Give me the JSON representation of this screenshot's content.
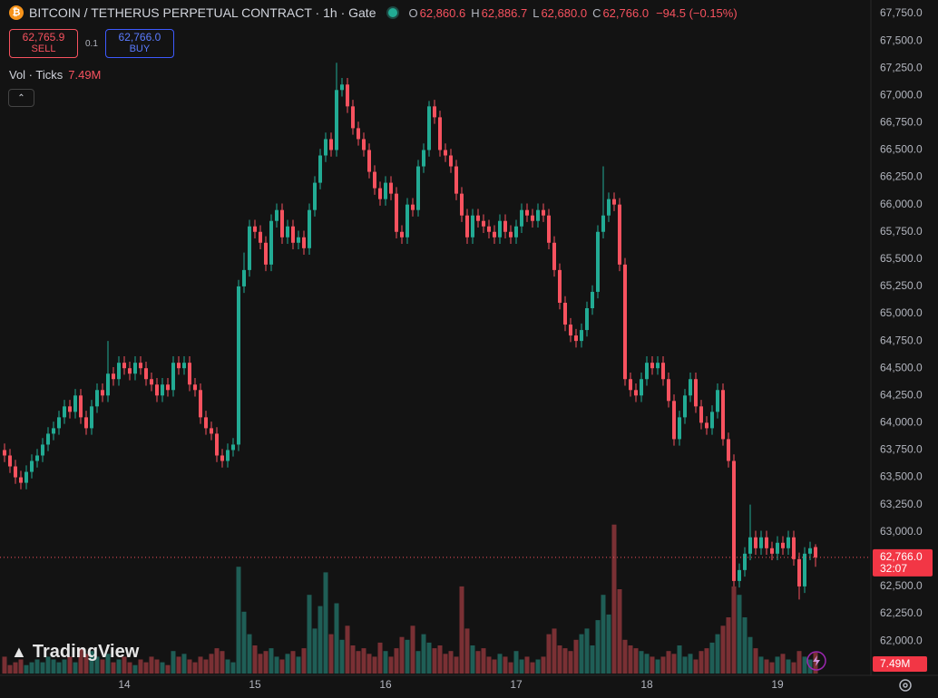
{
  "header": {
    "title": "BITCOIN / TETHERUS PERPETUAL CONTRACT · 1h · Gate",
    "coin_icon": "₿",
    "o_key": "O",
    "o_value": "62,860.6",
    "h_key": "H",
    "h_value": "62,886.7",
    "l_key": "L",
    "l_value": "62,680.0",
    "c_key": "C",
    "c_value": "62,766.0",
    "change": "−94.5 (−0.15%)",
    "sell_price": "62,765.9",
    "sell_label": "SELL",
    "quantity": "0.1",
    "buy_price": "62,766.0",
    "buy_label": "BUY",
    "volume_label": "Vol · Ticks",
    "volume_value": "7.49M",
    "logo": "TradingView"
  },
  "chart_data": {
    "type": "candlestick",
    "title": "BITCOIN / TETHERUS PERPETUAL CONTRACT · 1h · Gate",
    "up_color": "#22ab94",
    "down_color": "#f7525f",
    "volume_up_color": "#1f5e56",
    "volume_down_color": "#7a3034",
    "categories": [
      null,
      null,
      null,
      null,
      null,
      null,
      null,
      null,
      null,
      null,
      null,
      null,
      null,
      null,
      null,
      null,
      null,
      null,
      null,
      null,
      null,
      null,
      "14",
      null,
      null,
      null,
      null,
      null,
      null,
      null,
      null,
      null,
      null,
      null,
      null,
      null,
      null,
      null,
      null,
      null,
      null,
      null,
      null,
      null,
      null,
      null,
      "15",
      null,
      null,
      null,
      null,
      null,
      null,
      null,
      null,
      null,
      null,
      null,
      null,
      null,
      null,
      null,
      null,
      null,
      null,
      null,
      null,
      null,
      null,
      null,
      "16",
      null,
      null,
      null,
      null,
      null,
      null,
      null,
      null,
      null,
      null,
      null,
      null,
      null,
      null,
      null,
      null,
      null,
      null,
      null,
      null,
      null,
      null,
      null,
      "17",
      null,
      null,
      null,
      null,
      null,
      null,
      null,
      null,
      null,
      null,
      null,
      null,
      null,
      null,
      null,
      null,
      null,
      null,
      null,
      null,
      null,
      null,
      null,
      "18",
      null,
      null,
      null,
      null,
      null,
      null,
      null,
      null,
      null,
      null,
      null,
      null,
      null,
      null,
      null,
      null,
      null,
      null,
      null,
      null,
      null,
      null,
      null,
      "19",
      null,
      null,
      null,
      null,
      null,
      null,
      null
    ],
    "open": [
      63750,
      63700,
      63600,
      63500,
      63450,
      63550,
      63650,
      63700,
      63800,
      63900,
      63950,
      64050,
      64150,
      64100,
      64250,
      64050,
      63950,
      64150,
      64300,
      64250,
      64450,
      64400,
      64550,
      64500,
      64450,
      64550,
      64500,
      64400,
      64350,
      64250,
      64350,
      64300,
      64550,
      64500,
      64550,
      64350,
      64300,
      64050,
      63950,
      63900,
      63700,
      63650,
      63750,
      63800,
      65250,
      65400,
      65800,
      65750,
      65650,
      65450,
      65850,
      65950,
      65700,
      65800,
      65650,
      65700,
      65600,
      65950,
      66200,
      66450,
      66600,
      66500,
      67050,
      67100,
      66900,
      66700,
      66600,
      66500,
      66300,
      66150,
      66050,
      66200,
      66100,
      65750,
      65700,
      66000,
      65950,
      66350,
      66500,
      66900,
      66800,
      66500,
      66450,
      66350,
      66100,
      65900,
      65700,
      65900,
      65850,
      65800,
      65750,
      65700,
      65850,
      65750,
      65700,
      65800,
      65950,
      65900,
      65850,
      65950,
      65900,
      65650,
      65400,
      65100,
      64900,
      64800,
      64750,
      64850,
      65050,
      65200,
      65750,
      65900,
      66050,
      66000,
      65450,
      64400,
      64300,
      64250,
      64400,
      64550,
      64500,
      64550,
      64400,
      64200,
      63850,
      64050,
      64250,
      64400,
      64150,
      64000,
      63950,
      64100,
      64300,
      63850,
      63650,
      62550,
      62650,
      62800,
      62950,
      62850,
      62950,
      62850,
      62800,
      62900,
      62850,
      62950,
      62750,
      62500,
      62800,
      62860.6
    ],
    "high": [
      63810,
      63760,
      63660,
      63560,
      63610,
      63710,
      63760,
      63860,
      63960,
      64010,
      64110,
      64210,
      64210,
      64310,
      64310,
      64110,
      64210,
      64360,
      64360,
      64750,
      64510,
      64610,
      64610,
      64560,
      64610,
      64610,
      64560,
      64460,
      64410,
      64410,
      64410,
      64610,
      64610,
      64610,
      64610,
      64410,
      64360,
      64110,
      64010,
      63960,
      63760,
      63810,
      63860,
      65310,
      65560,
      65860,
      65860,
      65810,
      65710,
      65910,
      66010,
      66010,
      65860,
      65860,
      65760,
      65760,
      66010,
      66260,
      66510,
      66660,
      66660,
      67300,
      67160,
      67160,
      66960,
      66760,
      66660,
      66560,
      66360,
      66210,
      66260,
      66260,
      66160,
      65810,
      66060,
      66060,
      66410,
      66560,
      66950,
      66960,
      66860,
      66560,
      66510,
      66410,
      66160,
      65960,
      65960,
      65960,
      65910,
      65860,
      65810,
      65910,
      65910,
      65810,
      65860,
      66010,
      66010,
      65960,
      66010,
      66010,
      65960,
      65710,
      65460,
      65160,
      64960,
      64860,
      64910,
      65110,
      65260,
      65810,
      66350,
      66110,
      66110,
      66060,
      65510,
      64460,
      64360,
      64460,
      64610,
      64610,
      64610,
      64610,
      64460,
      64260,
      64110,
      64310,
      64460,
      64460,
      64210,
      64060,
      64160,
      64360,
      64360,
      63910,
      63710,
      62710,
      62860,
      63250,
      63010,
      63010,
      63010,
      62910,
      62960,
      62960,
      63010,
      63010,
      62810,
      62860,
      62910,
      62886.7
    ],
    "low": [
      63640,
      63540,
      63440,
      63390,
      63390,
      63490,
      63590,
      63640,
      63740,
      63840,
      63890,
      63990,
      64040,
      64040,
      63990,
      63890,
      63890,
      64090,
      64190,
      64190,
      64340,
      64340,
      64440,
      64390,
      64390,
      64440,
      64340,
      64290,
      64190,
      64190,
      64240,
      64240,
      64440,
      64440,
      64290,
      64240,
      63990,
      63890,
      63840,
      63640,
      63590,
      63590,
      63690,
      63740,
      65190,
      65340,
      65690,
      65590,
      65390,
      65390,
      65790,
      65640,
      65640,
      65590,
      65590,
      65540,
      65540,
      65890,
      66140,
      66390,
      66440,
      66440,
      66990,
      66840,
      66640,
      66540,
      66440,
      66240,
      66090,
      65990,
      65990,
      66040,
      65690,
      65640,
      65640,
      65890,
      65890,
      66290,
      66440,
      66740,
      66440,
      66390,
      66290,
      66040,
      65840,
      65640,
      65640,
      65790,
      65740,
      65690,
      65640,
      65640,
      65690,
      65640,
      65640,
      65740,
      65840,
      65790,
      65790,
      65840,
      65590,
      65340,
      65040,
      64840,
      64740,
      64690,
      64690,
      64790,
      64990,
      65140,
      65690,
      65840,
      65940,
      65390,
      64340,
      64240,
      64190,
      64190,
      64340,
      64440,
      64440,
      64340,
      64140,
      63790,
      63790,
      63990,
      64190,
      64090,
      63940,
      63890,
      63890,
      64040,
      63790,
      63590,
      62500,
      62490,
      62590,
      62740,
      62790,
      62790,
      62790,
      62740,
      62740,
      62790,
      62790,
      62690,
      62380,
      62440,
      62740,
      62680.0
    ],
    "close": [
      63700,
      63600,
      63500,
      63450,
      63550,
      63650,
      63700,
      63800,
      63900,
      63950,
      64050,
      64150,
      64100,
      64250,
      64050,
      63950,
      64150,
      64300,
      64250,
      64450,
      64400,
      64550,
      64500,
      64450,
      64550,
      64500,
      64400,
      64350,
      64250,
      64350,
      64300,
      64550,
      64500,
      64550,
      64350,
      64300,
      64050,
      63950,
      63900,
      63700,
      63650,
      63750,
      63800,
      65250,
      65400,
      65800,
      65750,
      65650,
      65450,
      65850,
      65950,
      65700,
      65800,
      65650,
      65700,
      65600,
      65950,
      66200,
      66450,
      66600,
      66500,
      67050,
      67100,
      66900,
      66700,
      66600,
      66500,
      66300,
      66150,
      66050,
      66200,
      66100,
      65750,
      65700,
      66000,
      65950,
      66350,
      66500,
      66900,
      66800,
      66500,
      66450,
      66350,
      66100,
      65900,
      65700,
      65900,
      65850,
      65800,
      65750,
      65700,
      65850,
      65750,
      65700,
      65800,
      65950,
      65900,
      65850,
      65950,
      65900,
      65650,
      65400,
      65100,
      64900,
      64800,
      64750,
      64850,
      65050,
      65200,
      65750,
      65900,
      66050,
      66000,
      65450,
      64400,
      64300,
      64250,
      64400,
      64550,
      64500,
      64550,
      64400,
      64200,
      63850,
      64050,
      64250,
      64400,
      64150,
      64000,
      63950,
      64100,
      64300,
      63850,
      63650,
      62550,
      62650,
      62800,
      62950,
      62850,
      62950,
      62850,
      62800,
      62900,
      62850,
      62950,
      62750,
      62500,
      62800,
      62850,
      62766.0
    ],
    "volume": [
      6,
      3,
      4,
      5,
      3,
      4,
      5,
      4,
      6,
      5,
      4,
      5,
      6,
      4,
      9,
      7,
      8,
      6,
      5,
      7,
      4,
      5,
      6,
      4,
      3,
      5,
      4,
      6,
      5,
      4,
      3,
      8,
      6,
      7,
      5,
      4,
      6,
      5,
      7,
      9,
      8,
      5,
      4,
      38,
      22,
      14,
      10,
      7,
      8,
      9,
      6,
      5,
      7,
      8,
      6,
      9,
      28,
      16,
      24,
      36,
      14,
      25,
      12,
      17,
      10,
      8,
      9,
      7,
      6,
      11,
      8,
      6,
      9,
      13,
      12,
      17,
      8,
      14,
      11,
      9,
      10,
      7,
      8,
      6,
      31,
      16,
      10,
      8,
      9,
      6,
      5,
      7,
      6,
      4,
      8,
      5,
      6,
      4,
      5,
      6,
      14,
      16,
      10,
      9,
      8,
      12,
      14,
      16,
      10,
      19,
      28,
      21,
      53,
      30,
      12,
      10,
      9,
      8,
      7,
      6,
      5,
      6,
      8,
      7,
      10,
      6,
      7,
      5,
      8,
      9,
      11,
      14,
      17,
      20,
      31,
      28,
      20,
      13,
      9,
      6,
      5,
      4,
      6,
      7,
      5,
      4,
      8,
      6,
      5,
      7.49
    ],
    "ylim": [
      61685,
      67875
    ],
    "yticks": [
      {
        "value": 62000,
        "label": "62,000.0"
      },
      {
        "value": 62250,
        "label": "62,250.0"
      },
      {
        "value": 62500,
        "label": "62,500.0"
      },
      {
        "value": 62750,
        "label": "62,750.0"
      },
      {
        "value": 63000,
        "label": "63,000.0"
      },
      {
        "value": 63250,
        "label": "63,250.0"
      },
      {
        "value": 63500,
        "label": "63,500.0"
      },
      {
        "value": 63750,
        "label": "63,750.0"
      },
      {
        "value": 64000,
        "label": "64,000.0"
      },
      {
        "value": 64250,
        "label": "64,250.0"
      },
      {
        "value": 64500,
        "label": "64,500.0"
      },
      {
        "value": 64750,
        "label": "64,750.0"
      },
      {
        "value": 65000,
        "label": "65,000.0"
      },
      {
        "value": 65250,
        "label": "65,250.0"
      },
      {
        "value": 65500,
        "label": "65,500.0"
      },
      {
        "value": 65750,
        "label": "65,750.0"
      },
      {
        "value": 66000,
        "label": "66,000.0"
      },
      {
        "value": 66250,
        "label": "66,250.0"
      },
      {
        "value": 66500,
        "label": "66,500.0"
      },
      {
        "value": 66750,
        "label": "66,750.0"
      },
      {
        "value": 67000,
        "label": "67,000.0"
      },
      {
        "value": 67250,
        "label": "67,250.0"
      },
      {
        "value": 67500,
        "label": "67,500.0"
      },
      {
        "value": 67750,
        "label": "67,750.0"
      }
    ],
    "grid": false,
    "last_price": {
      "value": 62766.0,
      "label": "62,766.0"
    },
    "countdown": "32:07",
    "volume_tag": "7.49M"
  }
}
